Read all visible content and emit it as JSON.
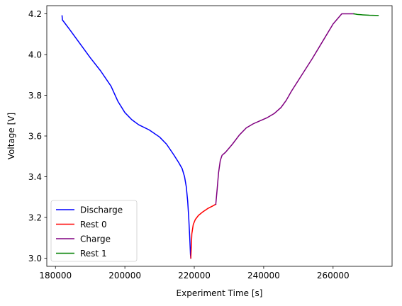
{
  "chart_data": {
    "type": "line",
    "title": "",
    "xlabel": "Experiment Time [s]",
    "ylabel": "Voltage [V]",
    "xlim": [
      177500,
      277000
    ],
    "ylim": [
      2.96,
      4.24
    ],
    "xticks": [
      180000,
      200000,
      220000,
      240000,
      260000
    ],
    "yticks": [
      3.0,
      3.2,
      3.4,
      3.6,
      3.8,
      4.0,
      4.2
    ],
    "xtick_labels": [
      "180000",
      "200000",
      "220000",
      "240000",
      "260000"
    ],
    "ytick_labels": [
      "3.0",
      "3.2",
      "3.4",
      "3.6",
      "3.8",
      "4.0",
      "4.2"
    ],
    "grid": false,
    "legend_position": "lower-left",
    "series": [
      {
        "name": "Discharge",
        "color": "#0000ff",
        "points": [
          [
            181900,
            4.19
          ],
          [
            182000,
            4.17
          ],
          [
            184000,
            4.125
          ],
          [
            187000,
            4.055
          ],
          [
            190000,
            3.985
          ],
          [
            193000,
            3.92
          ],
          [
            196000,
            3.845
          ],
          [
            198000,
            3.77
          ],
          [
            200000,
            3.715
          ],
          [
            202000,
            3.68
          ],
          [
            204000,
            3.655
          ],
          [
            207000,
            3.63
          ],
          [
            210000,
            3.595
          ],
          [
            212000,
            3.56
          ],
          [
            214000,
            3.51
          ],
          [
            215500,
            3.47
          ],
          [
            216500,
            3.44
          ],
          [
            217200,
            3.4
          ],
          [
            217700,
            3.35
          ],
          [
            218100,
            3.28
          ],
          [
            218400,
            3.2
          ],
          [
            218700,
            3.1
          ],
          [
            218900,
            3.02
          ],
          [
            219000,
            3.0
          ]
        ]
      },
      {
        "name": "Rest 0",
        "color": "#ff0000",
        "points": [
          [
            219000,
            3.0
          ],
          [
            219300,
            3.12
          ],
          [
            219700,
            3.165
          ],
          [
            220300,
            3.19
          ],
          [
            221200,
            3.21
          ],
          [
            222500,
            3.228
          ],
          [
            224000,
            3.245
          ],
          [
            225500,
            3.258
          ],
          [
            226200,
            3.265
          ]
        ]
      },
      {
        "name": "Charge",
        "color": "#800080",
        "points": [
          [
            226200,
            3.265
          ],
          [
            226600,
            3.34
          ],
          [
            227000,
            3.42
          ],
          [
            227500,
            3.48
          ],
          [
            228000,
            3.505
          ],
          [
            229000,
            3.52
          ],
          [
            231000,
            3.56
          ],
          [
            233000,
            3.605
          ],
          [
            235000,
            3.64
          ],
          [
            237000,
            3.66
          ],
          [
            239000,
            3.675
          ],
          [
            241000,
            3.69
          ],
          [
            243000,
            3.71
          ],
          [
            245000,
            3.74
          ],
          [
            246500,
            3.775
          ],
          [
            248000,
            3.82
          ],
          [
            251000,
            3.9
          ],
          [
            254000,
            3.98
          ],
          [
            257000,
            4.065
          ],
          [
            260000,
            4.15
          ],
          [
            262500,
            4.2
          ],
          [
            266000,
            4.2
          ]
        ]
      },
      {
        "name": "Rest 1",
        "color": "#008000",
        "points": [
          [
            266000,
            4.2
          ],
          [
            267000,
            4.197
          ],
          [
            268500,
            4.195
          ],
          [
            270500,
            4.193
          ],
          [
            273000,
            4.192
          ]
        ]
      }
    ]
  }
}
